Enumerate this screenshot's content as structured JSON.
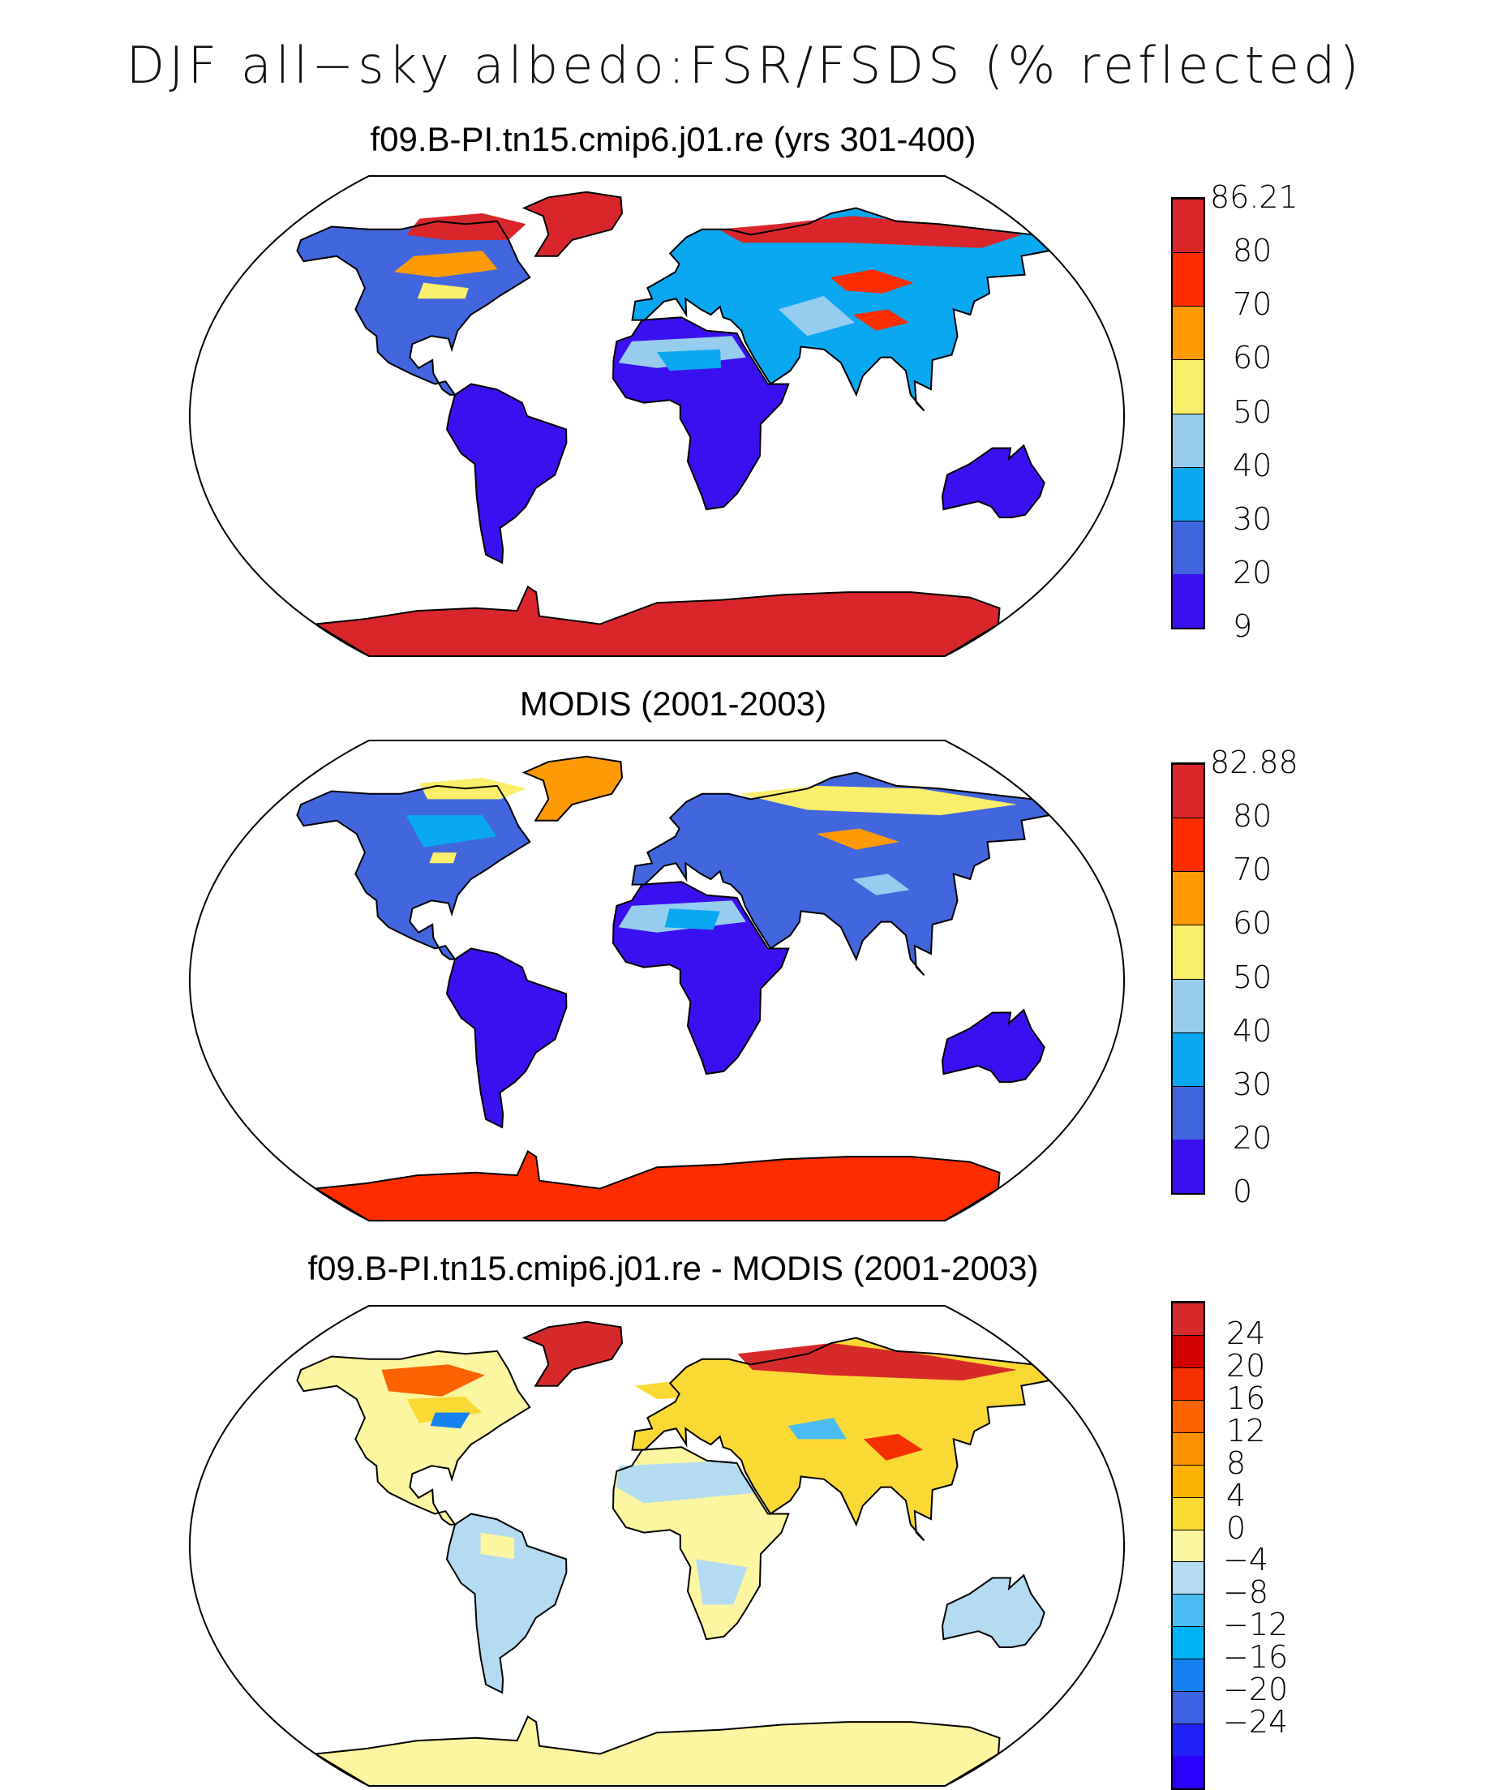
{
  "title": "DJF all−sky albedo:FSR/FSDS (% reflected)",
  "colors": {
    "seq": [
      "#3a10f0",
      "#4166de",
      "#0aa8f0",
      "#96cdee",
      "#fbee6a",
      "#fd9a06",
      "#fd2d00",
      "#d9262a"
    ],
    "div": [
      "#2b00ff",
      "#1f22f8",
      "#3e62e4",
      "#1582f0",
      "#00b2f6",
      "#4abcf2",
      "#b3dbf2",
      "#fdf6a0",
      "#fbd935",
      "#fcb400",
      "#fc9100",
      "#fc6300",
      "#f42f00",
      "#d30000",
      "#d62a2a"
    ]
  },
  "panels": [
    {
      "title": "f09.B-PI.tn15.cmip6.j01.re (yrs 301-400)",
      "colorbar": {
        "palette": "seq",
        "labels": [
          "86.21",
          "80",
          "70",
          "60",
          "50",
          "40",
          "30",
          "20",
          "9"
        ]
      }
    },
    {
      "title": "MODIS (2001-2003)",
      "colorbar": {
        "palette": "seq",
        "labels": [
          "82.88",
          "80",
          "70",
          "60",
          "50",
          "40",
          "30",
          "20",
          "0"
        ]
      }
    },
    {
      "title": "f09.B-PI.tn15.cmip6.j01.re - MODIS (2001-2003)",
      "colorbar": {
        "palette": "div",
        "labels": [
          "24",
          "20",
          "16",
          "12",
          "8",
          "4",
          "0",
          "−4",
          "−8",
          "−12",
          "−16",
          "−20",
          "−24"
        ]
      }
    }
  ]
}
